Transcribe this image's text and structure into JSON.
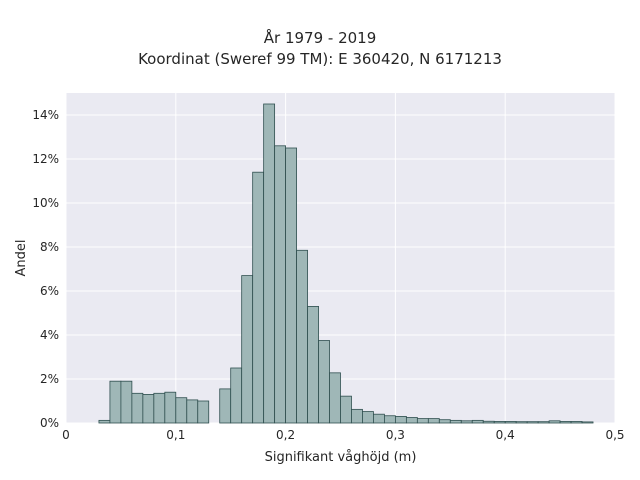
{
  "chart_data": {
    "type": "bar",
    "title": "År 1979 - 2019",
    "subtitle": "Koordinat (Sweref 99 TM): E 360420, N 6171213",
    "xlabel": "Signifikant våghöjd (m)",
    "ylabel": "Andel",
    "xlim": [
      0,
      0.5
    ],
    "ylim": [
      0,
      15
    ],
    "x_ticks": [
      0,
      0.1,
      0.2,
      0.3,
      0.4,
      0.5
    ],
    "x_tick_labels": [
      "0",
      "0,1",
      "0,2",
      "0,3",
      "0,4",
      "0,5"
    ],
    "y_ticks": [
      0,
      2,
      4,
      6,
      8,
      10,
      12,
      14
    ],
    "y_tick_labels": [
      "0%",
      "2%",
      "4%",
      "6%",
      "8%",
      "10%",
      "12%",
      "14%"
    ],
    "bin_width": 0.01,
    "bin_starts": [
      0.03,
      0.04,
      0.05,
      0.06,
      0.07,
      0.08,
      0.09,
      0.1,
      0.11,
      0.12,
      0.14,
      0.15,
      0.16,
      0.17,
      0.18,
      0.19,
      0.2,
      0.21,
      0.22,
      0.23,
      0.24,
      0.25,
      0.26,
      0.27,
      0.28,
      0.29,
      0.3,
      0.31,
      0.32,
      0.33,
      0.34,
      0.35,
      0.36,
      0.37,
      0.38,
      0.39,
      0.4,
      0.41,
      0.42,
      0.43,
      0.44,
      0.45,
      0.46,
      0.47
    ],
    "values": [
      0.12,
      1.9,
      1.9,
      1.35,
      1.3,
      1.35,
      1.4,
      1.15,
      1.05,
      1.0,
      1.55,
      2.5,
      6.7,
      11.4,
      14.5,
      12.6,
      12.5,
      7.85,
      5.3,
      3.75,
      2.28,
      1.22,
      0.62,
      0.52,
      0.4,
      0.33,
      0.3,
      0.25,
      0.2,
      0.2,
      0.15,
      0.12,
      0.1,
      0.12,
      0.08,
      0.07,
      0.07,
      0.06,
      0.06,
      0.06,
      0.1,
      0.07,
      0.07,
      0.05
    ],
    "units": "%",
    "bar_color": "#9fb7b7",
    "bar_edge_color": "#2f4f4f",
    "background_color": "#eaeaf2",
    "grid": true
  }
}
